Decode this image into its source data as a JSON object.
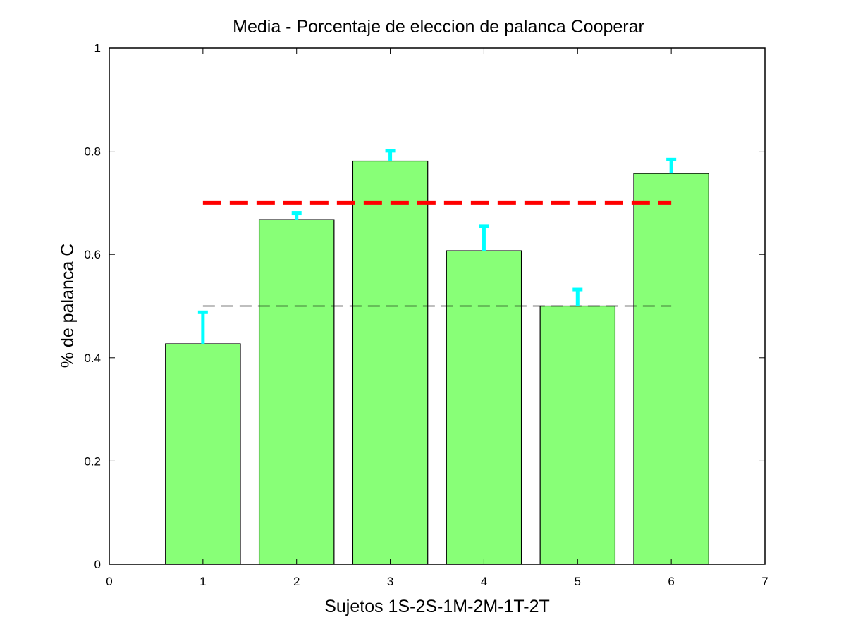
{
  "chart_data": {
    "type": "bar",
    "title": "Media - Porcentaje de eleccion de palanca Cooperar",
    "xlabel": "Sujetos 1S-2S-1M-2M-1T-2T",
    "ylabel": "% de palanca C",
    "xlim": [
      0,
      7
    ],
    "ylim": [
      0,
      1
    ],
    "xticks": [
      0,
      1,
      2,
      3,
      4,
      5,
      6,
      7
    ],
    "xtick_labels": [
      "0",
      "1",
      "2",
      "3",
      "4",
      "5",
      "6",
      "7"
    ],
    "yticks": [
      0,
      0.2,
      0.4,
      0.6,
      0.8,
      1
    ],
    "ytick_labels": [
      "0",
      "0.2",
      "0.4",
      "0.6",
      "0.8",
      "1"
    ],
    "categories": [
      1,
      2,
      3,
      4,
      5,
      6
    ],
    "values": [
      0.427,
      0.667,
      0.781,
      0.607,
      0.5,
      0.757
    ],
    "error_upper": [
      0.061,
      0.013,
      0.02,
      0.048,
      0.032,
      0.027
    ],
    "reference_lines": [
      {
        "kind": "threshold",
        "y": 0.7,
        "x_from": 1,
        "x_to": 6,
        "color": "#ff0000",
        "style": "dashed-thick"
      },
      {
        "kind": "chance",
        "y": 0.5,
        "x_from": 1,
        "x_to": 6,
        "color": "#000000",
        "style": "dashed-thin"
      }
    ],
    "colors": {
      "bar_fill": "#88ff77",
      "bar_edge": "#000000",
      "error_bar": "#00ffff",
      "axes": "#000000"
    },
    "grid": false,
    "legend": "none"
  }
}
